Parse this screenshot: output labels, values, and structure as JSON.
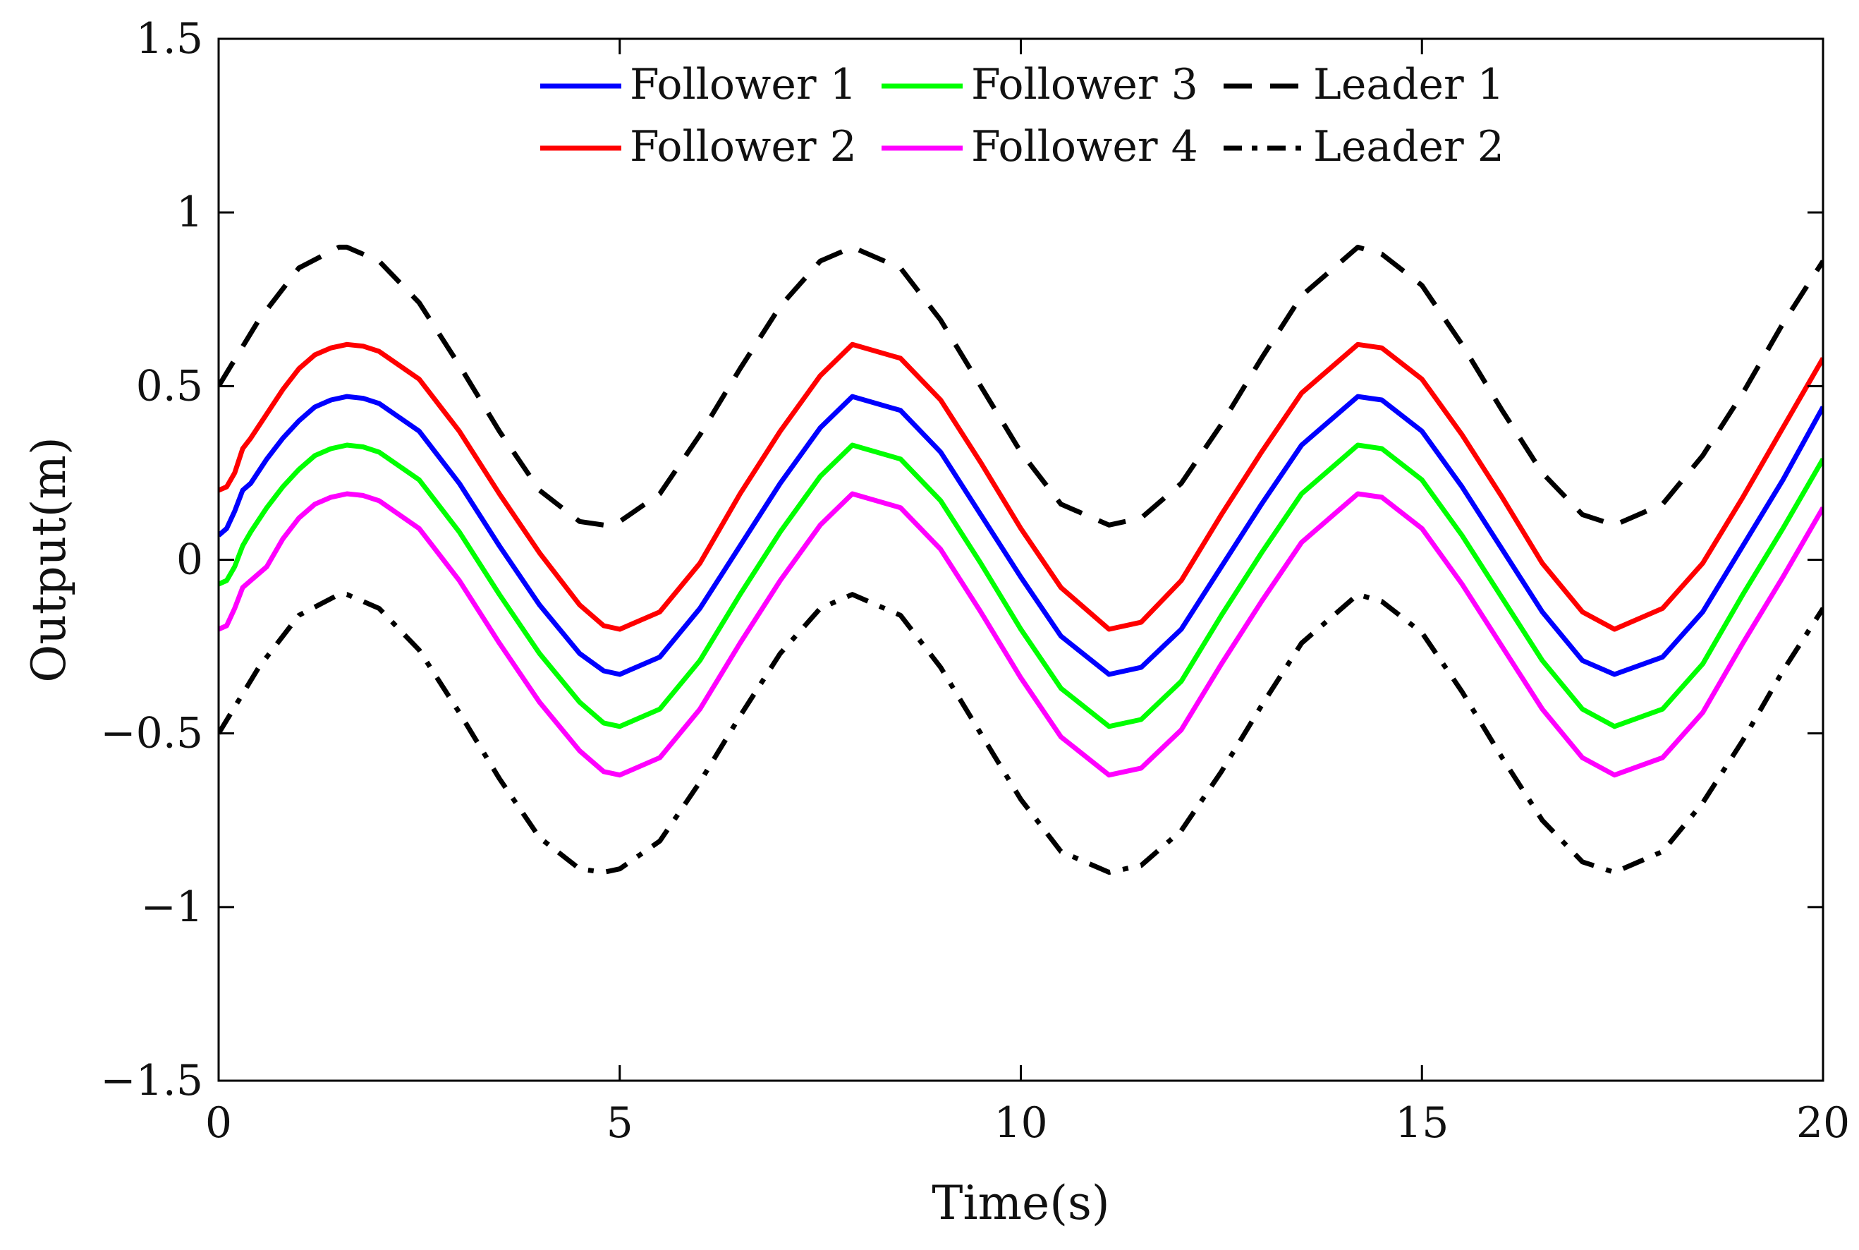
{
  "chart_data": {
    "type": "line",
    "title": "",
    "xlabel": "Time(s)",
    "ylabel": "Output(m)",
    "xlim": [
      0,
      20
    ],
    "ylim": [
      -1.5,
      1.5
    ],
    "grid": false,
    "legend_position": "top-center",
    "xticks": [
      0,
      5,
      10,
      15,
      20
    ],
    "xtick_labels": [
      "0",
      "5",
      "10",
      "15",
      "20"
    ],
    "yticks": [
      -1.5,
      -1,
      -0.5,
      0,
      0.5,
      1,
      1.5
    ],
    "ytick_labels": [
      "−1.5",
      "−1",
      "−0.5",
      "0",
      "0.5",
      "1",
      "1.5"
    ],
    "series": [
      {
        "name": "Follower 1",
        "color": "#0000ff",
        "style": "solid",
        "x": [
          0,
          0.1,
          0.2,
          0.3,
          0.4,
          0.6,
          0.8,
          1.0,
          1.2,
          1.4,
          1.6,
          1.8,
          2.0,
          2.5,
          3.0,
          3.5,
          4.0,
          4.5,
          4.8,
          5.0,
          5.5,
          6.0,
          6.5,
          7.0,
          7.5,
          7.9,
          8.5,
          9.0,
          9.5,
          10.0,
          10.5,
          11.1,
          11.5,
          12.0,
          12.5,
          13.0,
          13.5,
          14.2,
          14.5,
          15.0,
          15.5,
          16.0,
          16.5,
          17.0,
          17.4,
          18.0,
          18.5,
          19.0,
          19.5,
          20.0
        ],
        "y": [
          0.07,
          0.09,
          0.14,
          0.2,
          0.22,
          0.29,
          0.35,
          0.4,
          0.44,
          0.46,
          0.47,
          0.465,
          0.45,
          0.37,
          0.22,
          0.04,
          -0.13,
          -0.27,
          -0.32,
          -0.33,
          -0.28,
          -0.14,
          0.04,
          0.22,
          0.38,
          0.47,
          0.43,
          0.31,
          0.13,
          -0.05,
          -0.22,
          -0.33,
          -0.31,
          -0.2,
          -0.02,
          0.16,
          0.33,
          0.47,
          0.46,
          0.37,
          0.21,
          0.03,
          -0.15,
          -0.29,
          -0.33,
          -0.28,
          -0.15,
          0.04,
          0.23,
          0.44
        ]
      },
      {
        "name": "Follower 2",
        "color": "#ff0000",
        "style": "solid",
        "x": [
          0,
          0.1,
          0.2,
          0.3,
          0.4,
          0.6,
          0.8,
          1.0,
          1.2,
          1.4,
          1.6,
          1.8,
          2.0,
          2.5,
          3.0,
          3.5,
          4.0,
          4.5,
          4.8,
          5.0,
          5.5,
          6.0,
          6.5,
          7.0,
          7.5,
          7.9,
          8.5,
          9.0,
          9.5,
          10.0,
          10.5,
          11.1,
          11.5,
          12.0,
          12.5,
          13.0,
          13.5,
          14.2,
          14.5,
          15.0,
          15.5,
          16.0,
          16.5,
          17.0,
          17.4,
          18.0,
          18.5,
          19.0,
          19.5,
          20.0
        ],
        "y": [
          0.2,
          0.21,
          0.25,
          0.32,
          0.35,
          0.42,
          0.49,
          0.55,
          0.59,
          0.61,
          0.62,
          0.615,
          0.6,
          0.52,
          0.37,
          0.19,
          0.02,
          -0.13,
          -0.19,
          -0.2,
          -0.15,
          -0.01,
          0.19,
          0.37,
          0.53,
          0.62,
          0.58,
          0.46,
          0.28,
          0.09,
          -0.08,
          -0.2,
          -0.18,
          -0.06,
          0.13,
          0.31,
          0.48,
          0.62,
          0.61,
          0.52,
          0.36,
          0.18,
          -0.01,
          -0.15,
          -0.2,
          -0.14,
          -0.01,
          0.18,
          0.38,
          0.58
        ]
      },
      {
        "name": "Follower 3",
        "color": "#00ff00",
        "style": "solid",
        "x": [
          0,
          0.1,
          0.2,
          0.3,
          0.4,
          0.6,
          0.8,
          1.0,
          1.2,
          1.4,
          1.6,
          1.8,
          2.0,
          2.5,
          3.0,
          3.5,
          4.0,
          4.5,
          4.8,
          5.0,
          5.5,
          6.0,
          6.5,
          7.0,
          7.5,
          7.9,
          8.5,
          9.0,
          9.5,
          10.0,
          10.5,
          11.1,
          11.5,
          12.0,
          12.5,
          13.0,
          13.5,
          14.2,
          14.5,
          15.0,
          15.5,
          16.0,
          16.5,
          17.0,
          17.4,
          18.0,
          18.5,
          19.0,
          19.5,
          20.0
        ],
        "y": [
          -0.07,
          -0.06,
          -0.02,
          0.04,
          0.08,
          0.15,
          0.21,
          0.26,
          0.3,
          0.32,
          0.33,
          0.325,
          0.31,
          0.23,
          0.08,
          -0.1,
          -0.27,
          -0.41,
          -0.47,
          -0.48,
          -0.43,
          -0.29,
          -0.1,
          0.08,
          0.24,
          0.33,
          0.29,
          0.17,
          -0.01,
          -0.2,
          -0.37,
          -0.48,
          -0.46,
          -0.35,
          -0.16,
          0.02,
          0.19,
          0.33,
          0.32,
          0.23,
          0.07,
          -0.11,
          -0.29,
          -0.43,
          -0.48,
          -0.43,
          -0.3,
          -0.1,
          0.09,
          0.29
        ]
      },
      {
        "name": "Follower 4",
        "color": "#ff00ff",
        "style": "solid",
        "x": [
          0,
          0.1,
          0.2,
          0.3,
          0.4,
          0.6,
          0.8,
          1.0,
          1.2,
          1.4,
          1.6,
          1.8,
          2.0,
          2.5,
          3.0,
          3.5,
          4.0,
          4.5,
          4.8,
          5.0,
          5.5,
          6.0,
          6.5,
          7.0,
          7.5,
          7.9,
          8.5,
          9.0,
          9.5,
          10.0,
          10.5,
          11.1,
          11.5,
          12.0,
          12.5,
          13.0,
          13.5,
          14.2,
          14.5,
          15.0,
          15.5,
          16.0,
          16.5,
          17.0,
          17.4,
          18.0,
          18.5,
          19.0,
          19.5,
          20.0
        ],
        "y": [
          -0.2,
          -0.19,
          -0.14,
          -0.08,
          -0.06,
          -0.02,
          0.06,
          0.12,
          0.16,
          0.18,
          0.19,
          0.185,
          0.17,
          0.09,
          -0.06,
          -0.24,
          -0.41,
          -0.55,
          -0.61,
          -0.62,
          -0.57,
          -0.43,
          -0.24,
          -0.06,
          0.1,
          0.19,
          0.15,
          0.03,
          -0.15,
          -0.34,
          -0.51,
          -0.62,
          -0.6,
          -0.49,
          -0.3,
          -0.12,
          0.05,
          0.19,
          0.18,
          0.09,
          -0.07,
          -0.25,
          -0.43,
          -0.57,
          -0.62,
          -0.57,
          -0.44,
          -0.24,
          -0.05,
          0.15
        ]
      },
      {
        "name": "Leader 1",
        "color": "#000000",
        "style": "dashed",
        "x": [
          0,
          0.5,
          1.0,
          1.5,
          1.6,
          2.0,
          2.5,
          3.0,
          3.5,
          4.0,
          4.5,
          4.8,
          5.0,
          5.5,
          6.0,
          6.5,
          7.0,
          7.5,
          7.9,
          8.5,
          9.0,
          9.5,
          10.0,
          10.5,
          11.1,
          11.5,
          12.0,
          12.5,
          13.0,
          13.5,
          14.2,
          14.5,
          15.0,
          15.5,
          16.0,
          16.5,
          17.0,
          17.4,
          18.0,
          18.5,
          19.0,
          19.5,
          20.0
        ],
        "y": [
          0.5,
          0.69,
          0.84,
          0.9,
          0.9,
          0.86,
          0.74,
          0.56,
          0.37,
          0.2,
          0.11,
          0.1,
          0.11,
          0.19,
          0.36,
          0.55,
          0.73,
          0.86,
          0.9,
          0.84,
          0.69,
          0.5,
          0.31,
          0.16,
          0.1,
          0.12,
          0.22,
          0.39,
          0.58,
          0.76,
          0.9,
          0.88,
          0.79,
          0.62,
          0.43,
          0.25,
          0.13,
          0.1,
          0.16,
          0.3,
          0.48,
          0.68,
          0.86
        ]
      },
      {
        "name": "Leader 2",
        "color": "#000000",
        "style": "dashdot",
        "x": [
          0,
          0.5,
          1.0,
          1.5,
          1.6,
          2.0,
          2.5,
          3.0,
          3.5,
          4.0,
          4.5,
          4.8,
          5.0,
          5.5,
          6.0,
          6.5,
          7.0,
          7.5,
          7.9,
          8.5,
          9.0,
          9.5,
          10.0,
          10.5,
          11.1,
          11.5,
          12.0,
          12.5,
          13.0,
          13.5,
          14.2,
          14.5,
          15.0,
          15.5,
          16.0,
          16.5,
          17.0,
          17.4,
          18.0,
          18.5,
          19.0,
          19.5,
          20.0
        ],
        "y": [
          -0.5,
          -0.31,
          -0.16,
          -0.1,
          -0.1,
          -0.14,
          -0.26,
          -0.44,
          -0.63,
          -0.8,
          -0.89,
          -0.9,
          -0.89,
          -0.81,
          -0.64,
          -0.45,
          -0.27,
          -0.14,
          -0.1,
          -0.16,
          -0.31,
          -0.5,
          -0.69,
          -0.84,
          -0.9,
          -0.88,
          -0.78,
          -0.61,
          -0.42,
          -0.24,
          -0.1,
          -0.12,
          -0.21,
          -0.38,
          -0.57,
          -0.75,
          -0.87,
          -0.9,
          -0.84,
          -0.7,
          -0.52,
          -0.32,
          -0.14
        ]
      }
    ]
  }
}
